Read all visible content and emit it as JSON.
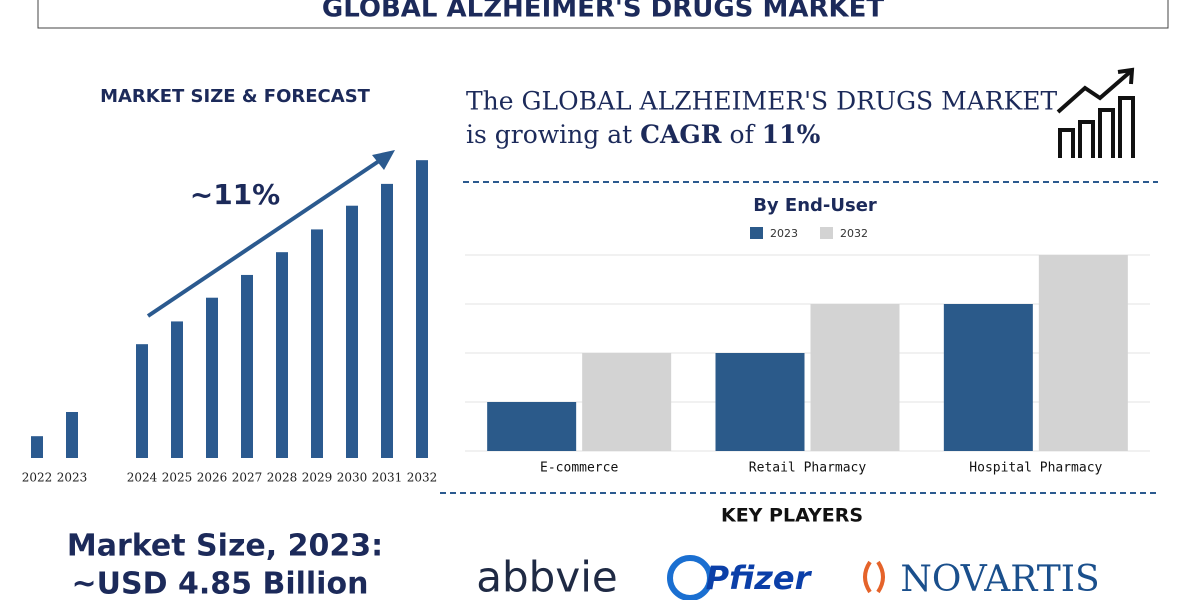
{
  "header": {
    "title": "GLOBAL ALZHEIMER'S DRUGS MARKET"
  },
  "chart_data": [
    {
      "type": "bar",
      "title": "MARKET SIZE & FORECAST",
      "annotation": "~11%",
      "categories": [
        "2022",
        "2023",
        "2024",
        "2025",
        "2026",
        "2027",
        "2028",
        "2029",
        "2030",
        "2031",
        "2032"
      ],
      "values": [
        2.3,
        4.85,
        12.0,
        14.4,
        16.9,
        19.3,
        21.7,
        24.1,
        26.6,
        28.9,
        31.4
      ],
      "color": "#2b5a8f",
      "ylim": [
        0,
        33
      ]
    },
    {
      "type": "grouped-bar",
      "title": "By End-User",
      "categories": [
        "E-commerce",
        "Retail Pharmacy",
        "Hospital Pharmacy"
      ],
      "series": [
        {
          "name": "2023",
          "color": "#2b5a8a",
          "values": [
            1,
            2,
            3
          ]
        },
        {
          "name": "2032",
          "color": "#d3d3d3",
          "values": [
            2,
            3,
            4
          ]
        }
      ],
      "ylim": [
        0,
        4
      ],
      "yticks": [
        0,
        1,
        2,
        3,
        4
      ],
      "grid": true
    }
  ],
  "cagr": {
    "line1": "The GLOBAL ALZHEIMER'S DRUGS MARKET",
    "prefix": "is growing at",
    "term": "CAGR",
    "of": "of",
    "value": "11%"
  },
  "market_size": {
    "line1": "Market Size, 2023:",
    "line2": "~USD 4.85 Billion"
  },
  "key_players": {
    "title": "KEY PLAYERS",
    "companies": [
      "abbvie",
      "Pfizer",
      "NOVARTIS"
    ]
  }
}
